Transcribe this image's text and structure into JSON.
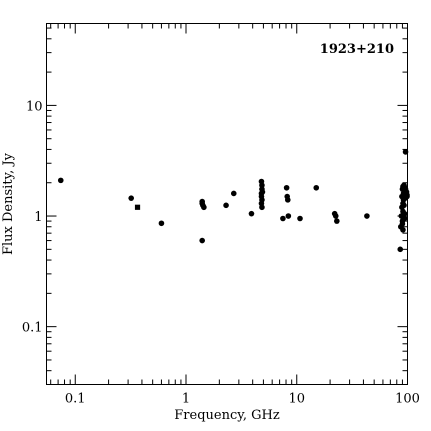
{
  "chart_data": {
    "type": "scatter",
    "title": "",
    "annotation": "1923+210",
    "xlabel": "Frequency, GHz",
    "ylabel": "Flux Density, Jy",
    "xscale": "log",
    "yscale": "log",
    "xlim": [
      0.055,
      100
    ],
    "ylim": [
      0.03,
      55
    ],
    "xticks": [
      0.1,
      1,
      10,
      100
    ],
    "xtick_labels": [
      "0.1",
      "1",
      "10",
      "100"
    ],
    "yticks": [
      0.1,
      1,
      10
    ],
    "ytick_labels": [
      "0.1",
      "1",
      "10"
    ],
    "grid": false,
    "legend": "none",
    "series": [
      {
        "marker": "circle",
        "points": [
          [
            0.074,
            2.1
          ],
          [
            0.32,
            1.45
          ],
          [
            0.6,
            0.86
          ],
          [
            1.4,
            1.35
          ],
          [
            1.4,
            1.3
          ],
          [
            1.42,
            1.25
          ],
          [
            1.45,
            1.2
          ],
          [
            1.4,
            0.6
          ],
          [
            2.3,
            1.25
          ],
          [
            2.7,
            1.6
          ],
          [
            3.9,
            1.05
          ],
          [
            4.8,
            2.05
          ],
          [
            4.85,
            1.9
          ],
          [
            4.85,
            1.75
          ],
          [
            4.8,
            1.6
          ],
          [
            4.8,
            1.5
          ],
          [
            4.85,
            1.4
          ],
          [
            4.8,
            1.3
          ],
          [
            4.85,
            1.2
          ],
          [
            4.9,
            1.65
          ],
          [
            7.5,
            0.95
          ],
          [
            8.1,
            1.8
          ],
          [
            8.2,
            1.5
          ],
          [
            8.3,
            1.4
          ],
          [
            8.4,
            1.0
          ],
          [
            10.7,
            0.95
          ],
          [
            15,
            1.8
          ],
          [
            22,
            1.05
          ],
          [
            22.5,
            1.0
          ],
          [
            23,
            0.9
          ],
          [
            43,
            1.0
          ],
          [
            86,
            0.5
          ],
          [
            87,
            0.8
          ],
          [
            88,
            1.0
          ],
          [
            89,
            1.2
          ],
          [
            89,
            1.5
          ],
          [
            90,
            1.75
          ],
          [
            90,
            0.9
          ],
          [
            90,
            0.85
          ],
          [
            91,
            1.3
          ],
          [
            91,
            1.1
          ],
          [
            91,
            1.85
          ],
          [
            91,
            0.75
          ],
          [
            92,
            1.6
          ],
          [
            92,
            1.4
          ],
          [
            92,
            1.0
          ],
          [
            93,
            1.9
          ],
          [
            93,
            1.55
          ],
          [
            93,
            1.25
          ],
          [
            94,
            1.7
          ],
          [
            94,
            1.05
          ],
          [
            94,
            0.95
          ],
          [
            95,
            1.8
          ],
          [
            95,
            1.45
          ],
          [
            96,
            1.75
          ],
          [
            96,
            3.8
          ],
          [
            97,
            1.6
          ],
          [
            98,
            1.65
          ],
          [
            99,
            1.55
          ],
          [
            100,
            1.5
          ]
        ]
      },
      {
        "marker": "square",
        "points": [
          [
            0.365,
            1.2
          ]
        ]
      }
    ]
  }
}
